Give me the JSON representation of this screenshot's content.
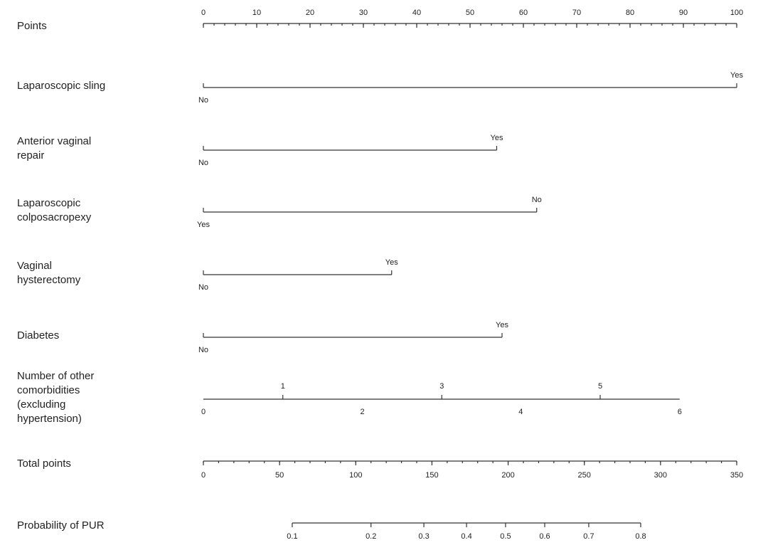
{
  "chart_data": {
    "type": "nomogram",
    "scales": [
      {
        "label_lines": [
          "Points"
        ],
        "lim": [
          0,
          100
        ],
        "ticks": [
          0,
          10,
          20,
          30,
          40,
          50,
          60,
          70,
          80,
          90,
          100
        ],
        "minor_step": 2,
        "label_side": "above"
      },
      {
        "label_lines": [
          "Laparoscopic sling"
        ],
        "levels": [
          {
            "label": "No",
            "points": 0
          },
          {
            "label": "Yes",
            "points": 100
          }
        ]
      },
      {
        "label_lines": [
          "Anterior vaginal",
          "repair"
        ],
        "levels": [
          {
            "label": "No",
            "points": 0
          },
          {
            "label": "Yes",
            "points": 55
          }
        ]
      },
      {
        "label_lines": [
          "Laparoscopic",
          "colposacropexy"
        ],
        "levels": [
          {
            "label": "Yes",
            "points": 0
          },
          {
            "label": "No",
            "points": 62.5
          }
        ]
      },
      {
        "label_lines": [
          "Vaginal",
          "hysterectomy"
        ],
        "levels": [
          {
            "label": "No",
            "points": 0
          },
          {
            "label": "Yes",
            "points": 35.3
          }
        ]
      },
      {
        "label_lines": [
          "Diabetes"
        ],
        "levels": [
          {
            "label": "No",
            "points": 0
          },
          {
            "label": "Yes",
            "points": 56
          }
        ]
      },
      {
        "label_lines": [
          "Number of other",
          "comorbidities",
          "(excluding",
          "hypertension)"
        ],
        "point_ticks": [
          {
            "value": 0,
            "points": 0
          },
          {
            "value": 1,
            "points": 14.9
          },
          {
            "value": 2,
            "points": 29.8
          },
          {
            "value": 3,
            "points": 44.7
          },
          {
            "value": 4,
            "points": 59.5
          },
          {
            "value": 5,
            "points": 74.4
          },
          {
            "value": 6,
            "points": 89.3
          }
        ]
      },
      {
        "label_lines": [
          "Total points"
        ],
        "lim": [
          0,
          350
        ],
        "ticks": [
          0,
          50,
          100,
          150,
          200,
          250,
          300,
          350
        ],
        "minor_step": 10,
        "label_side": "below"
      },
      {
        "label_lines": [
          "Probability of PUR"
        ],
        "prob_ticks": [
          {
            "value": 0.1,
            "total_points": 58.3
          },
          {
            "value": 0.2,
            "total_points": 110
          },
          {
            "value": 0.3,
            "total_points": 144.7
          },
          {
            "value": 0.4,
            "total_points": 172.7
          },
          {
            "value": 0.5,
            "total_points": 198.3
          },
          {
            "value": 0.6,
            "total_points": 224
          },
          {
            "value": 0.7,
            "total_points": 252.9
          },
          {
            "value": 0.8,
            "total_points": 287
          }
        ]
      }
    ]
  }
}
